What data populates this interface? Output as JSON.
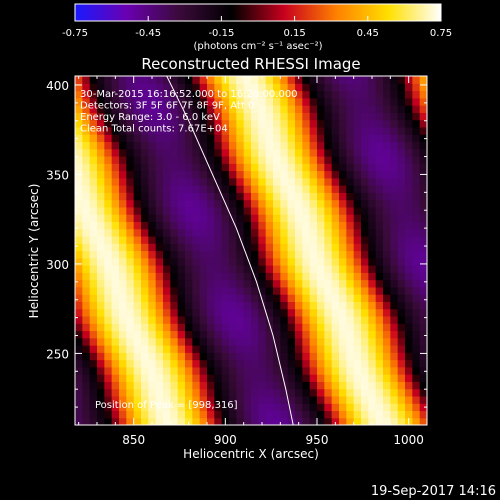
{
  "chart_data": {
    "type": "heatmap",
    "title": "Reconstructed RHESSI Image",
    "xlabel": "Heliocentric X (arcsec)",
    "ylabel": "Heliocentric Y (arcsec)",
    "xlim": [
      818,
      1010
    ],
    "ylim": [
      210,
      405
    ],
    "x_ticks": [
      "850",
      "900",
      "950",
      "1000"
    ],
    "x_tick_values": [
      850,
      900,
      950,
      1000
    ],
    "y_ticks": [
      "250",
      "300",
      "350",
      "400"
    ],
    "y_tick_values": [
      250,
      300,
      350,
      400
    ],
    "colorbar": {
      "label": "(photons cm⁻² s⁻¹ asec⁻²)",
      "range": [
        -0.75,
        0.75
      ],
      "ticks": [
        "-0.75",
        "-0.45",
        "-0.15",
        "0.15",
        "0.45",
        "0.75"
      ],
      "tick_values": [
        -0.75,
        -0.45,
        -0.15,
        0.15,
        0.45,
        0.75
      ],
      "colors": [
        "#1a1aff",
        "#6a00b0",
        "#3a0a3a",
        "#000000",
        "#c8001e",
        "#ff8000",
        "#ffe000",
        "#ffffff"
      ]
    },
    "annotations": [
      "30-Mar-2015 16:16:52.000 to 16:20:00.000",
      "Detectors: 3F 5F 6F 7F 8F 9F, Att 0",
      "Energy Range: 3.0 - 6.0 keV",
      "Clean    Total counts: 7.67E+04"
    ],
    "peak_label": "Position of Peak = [998,316]",
    "peak": [
      998,
      316
    ],
    "stripes": {
      "direction_dx_per_dy": 0.38,
      "period_arcsec": 115,
      "bright_band_centers_x_at_y300": [
        836,
        951
      ],
      "dark_band_centers_x_at_y300": [
        893,
        1008
      ]
    },
    "limb_curve": [
      [
        868,
        405
      ],
      [
        880,
        380
      ],
      [
        893,
        350
      ],
      [
        906,
        320
      ],
      [
        917,
        290
      ],
      [
        926,
        260
      ],
      [
        933,
        230
      ],
      [
        937,
        210
      ]
    ]
  },
  "footer": {
    "date": "19-Sep-2017 14:16"
  }
}
